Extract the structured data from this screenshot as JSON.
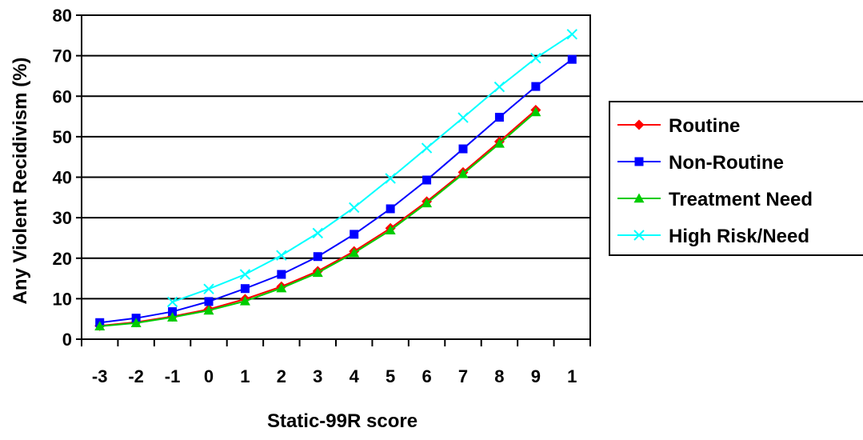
{
  "chart_data": {
    "type": "line",
    "xlabel": "Static-99R score",
    "ylabel": "Any Violent Recidivism (%)",
    "categories": [
      "-3",
      "-2",
      "-1",
      "0",
      "1",
      "2",
      "3",
      "4",
      "5",
      "6",
      "7",
      "8",
      "9",
      "1"
    ],
    "ylim": [
      0,
      80
    ],
    "yticks": [
      0,
      10,
      20,
      30,
      40,
      50,
      60,
      70,
      80
    ],
    "grid": "horizontal",
    "legend_position": "right",
    "series": [
      {
        "name": "Routine",
        "color": "#ff0000",
        "marker": "diamond",
        "values": [
          3.3,
          4.2,
          5.6,
          7.4,
          9.9,
          13.0,
          16.8,
          21.7,
          27.4,
          34.0,
          41.2,
          48.8,
          56.6,
          null
        ]
      },
      {
        "name": "Non-Routine",
        "color": "#0000ff",
        "marker": "square",
        "values": [
          4.1,
          5.2,
          6.8,
          9.3,
          12.5,
          16.0,
          20.4,
          25.9,
          32.2,
          39.3,
          47.0,
          54.8,
          62.4,
          69.1
        ]
      },
      {
        "name": "Treatment Need",
        "color": "#00cc00",
        "marker": "triangle",
        "values": [
          3.2,
          4.0,
          5.4,
          7.1,
          9.4,
          12.6,
          16.4,
          21.3,
          26.9,
          33.6,
          40.8,
          48.3,
          56.1,
          null
        ]
      },
      {
        "name": "High Risk/Need",
        "color": "#00ffff",
        "marker": "x",
        "values": [
          null,
          null,
          9.2,
          12.4,
          16.0,
          20.7,
          26.2,
          32.5,
          39.7,
          47.2,
          54.7,
          62.3,
          69.4,
          75.3
        ]
      }
    ]
  }
}
